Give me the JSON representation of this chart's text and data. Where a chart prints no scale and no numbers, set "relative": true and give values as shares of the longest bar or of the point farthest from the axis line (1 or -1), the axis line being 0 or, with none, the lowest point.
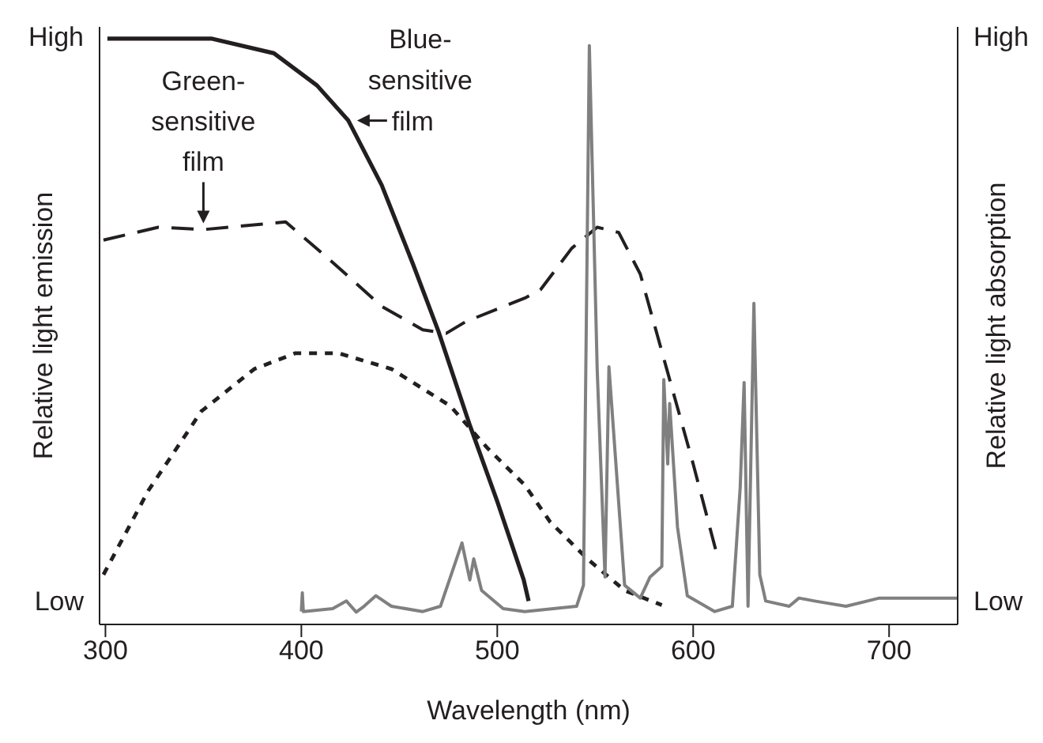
{
  "chart_data": {
    "type": "line",
    "relative": true,
    "xlabel": "Wavelength (nm)",
    "ylabel": "Relative light emission",
    "y2label": "Relative light absorption",
    "xlim": [
      297,
      735
    ],
    "xticks": [
      300,
      400,
      500,
      600,
      700
    ],
    "marker": "none",
    "annotations": [
      "High",
      "Low",
      "High",
      "Low",
      {
        "text": "Green-sensitive film",
        "x": 350,
        "y": 0.674
      },
      {
        "text": "Blue-sensitive film",
        "x": 426,
        "y": 0.86
      }
    ],
    "series": [
      {
        "color": "#231f20",
        "line_style": "solid",
        "x": [
          301,
          327,
          354,
          386,
          408,
          424,
          441,
          457,
          470,
          486,
          500,
          513.5,
          516
        ],
        "values": [
          1.0,
          1.0,
          1.0,
          0.975,
          0.92,
          0.86,
          0.75,
          0.615,
          0.5,
          0.34,
          0.21,
          0.076,
          0.04
        ]
      },
      {
        "color": "#231f20",
        "line_style": "dashed",
        "x": [
          299,
          327,
          350,
          392,
          414,
          441,
          462,
          474,
          484,
          514,
          522,
          538,
          551,
          562,
          573,
          586.5,
          600,
          612
        ],
        "values": [
          0.656,
          0.678,
          0.674,
          0.687,
          0.624,
          0.543,
          0.503,
          0.497,
          0.517,
          0.557,
          0.571,
          0.642,
          0.678,
          0.669,
          0.598,
          0.436,
          0.274,
          0.121
        ]
      },
      {
        "color": "#231f20",
        "line_style": "dotted",
        "x": [
          299,
          322,
          349,
          376,
          397,
          419,
          446,
          476,
          495,
          514,
          527,
          546,
          565,
          584
        ],
        "values": [
          0.085,
          0.229,
          0.364,
          0.436,
          0.463,
          0.463,
          0.436,
          0.373,
          0.301,
          0.238,
          0.175,
          0.112,
          0.058,
          0.033
        ]
      },
      {
        "color": "#808080",
        "line_style": "solid",
        "x": [
          400,
          400.5,
          401,
          416,
          423,
          428,
          432,
          438,
          446,
          462,
          471,
          482,
          486,
          488,
          492,
          503,
          514,
          540.5,
          544,
          547,
          551,
          555,
          557,
          565,
          573,
          578,
          584,
          585,
          587,
          588,
          592,
          597,
          611,
          620,
          624,
          626,
          628,
          631,
          634,
          637,
          649,
          654,
          662,
          678,
          695,
          716,
          735
        ],
        "values": [
          0.022,
          0.054,
          0.022,
          0.027,
          0.04,
          0.021,
          0.031,
          0.049,
          0.031,
          0.022,
          0.031,
          0.139,
          0.076,
          0.112,
          0.058,
          0.027,
          0.022,
          0.031,
          0.067,
          0.988,
          0.436,
          0.081,
          0.44,
          0.067,
          0.045,
          0.081,
          0.099,
          0.418,
          0.274,
          0.377,
          0.166,
          0.049,
          0.022,
          0.031,
          0.234,
          0.413,
          0.031,
          0.548,
          0.085,
          0.04,
          0.031,
          0.045,
          0.04,
          0.031,
          0.045,
          0.045,
          0.045
        ]
      }
    ]
  }
}
